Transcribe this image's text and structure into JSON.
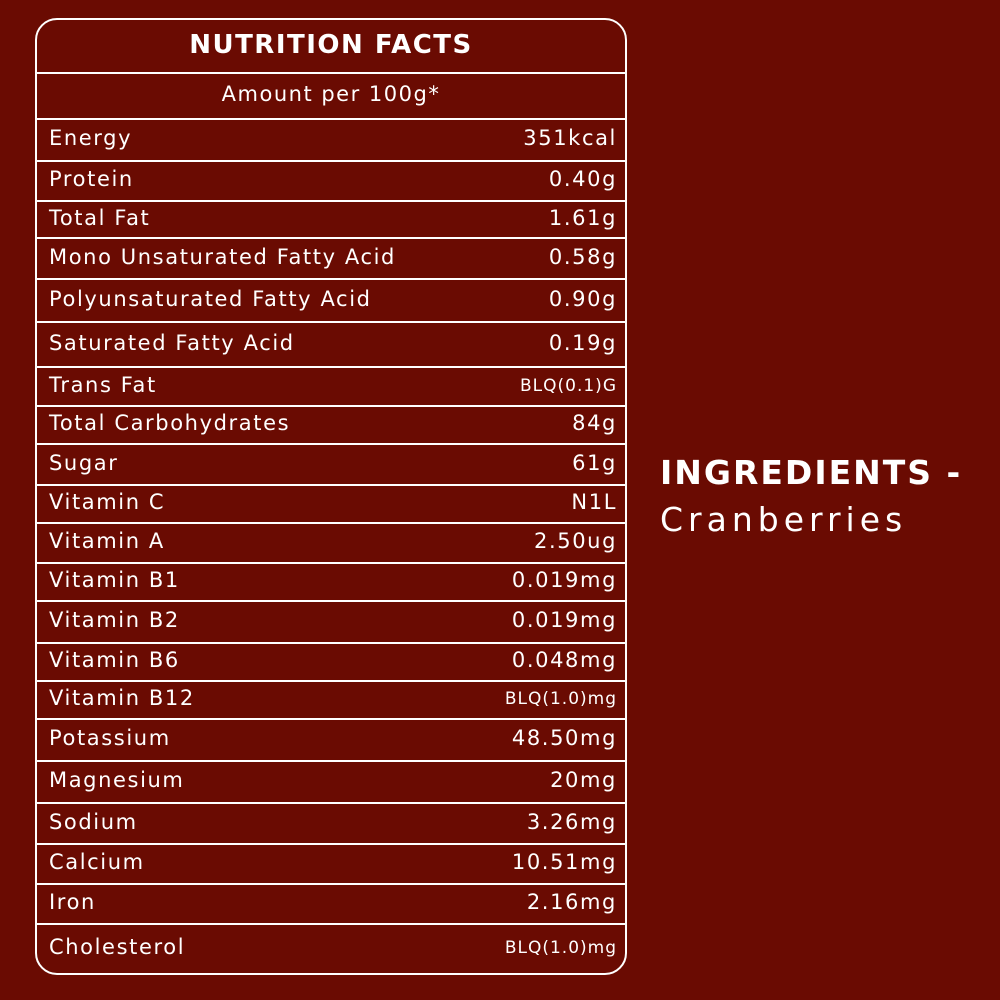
{
  "header": {
    "title": "NUTRITION FACTS",
    "subtitle": "Amount per 100g*"
  },
  "table": {
    "rows": [
      [
        "Energy",
        "351kcal"
      ],
      [
        "Protein",
        "0.40g"
      ],
      [
        "Total Fat",
        "1.61g"
      ],
      [
        "Mono Unsaturated Fatty Acid",
        "0.58g"
      ],
      [
        "Polyunsaturated Fatty Acid",
        "0.90g"
      ],
      [
        "Saturated Fatty Acid",
        "0.19g"
      ],
      [
        "Trans Fat",
        "BLQ(0.1)G"
      ],
      [
        "Total Carbohydrates",
        "84g"
      ],
      [
        "Sugar",
        "61g"
      ],
      [
        "Vitamin C",
        "N1L"
      ],
      [
        "Vitamin A",
        "2.50ug"
      ],
      [
        "Vitamin B1",
        "0.019mg"
      ],
      [
        "Vitamin B2",
        "0.019mg"
      ],
      [
        "Vitamin B6",
        "0.048mg"
      ],
      [
        "Vitamin B12",
        "BLQ(1.0)mg"
      ],
      [
        "Potassium",
        "48.50mg"
      ],
      [
        "Magnesium",
        "20mg"
      ],
      [
        "Sodium",
        "3.26mg"
      ],
      [
        "Calcium",
        "10.51mg"
      ],
      [
        "Iron",
        "2.16mg"
      ],
      [
        "Cholesterol",
        "BLQ(1.0)mg"
      ]
    ]
  },
  "ingredients": {
    "heading": "INGREDIENTS -",
    "text": "Cranberries"
  }
}
